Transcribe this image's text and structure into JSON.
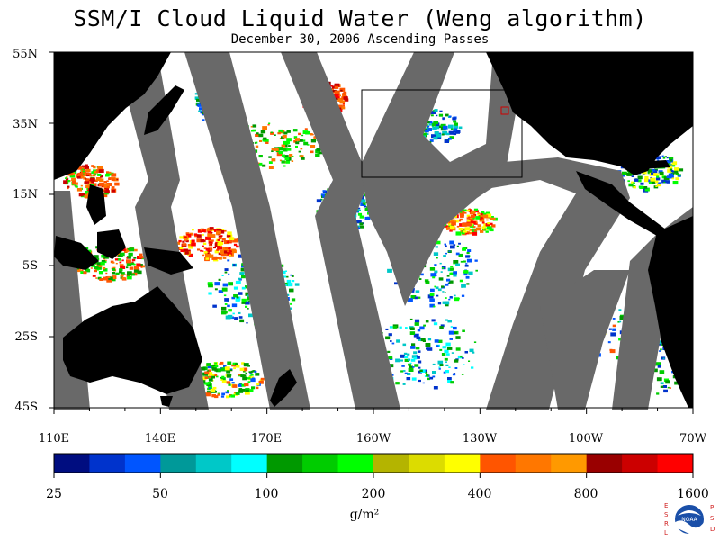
{
  "title": "SSM/I Cloud Liquid Water (Weng algorithm)",
  "subtitle": "December 30, 2006  Ascending Passes",
  "lat_labels": [
    "55N",
    "35N",
    "15N",
    "5S",
    "25S",
    "45S"
  ],
  "lon_labels": [
    "110E",
    "140E",
    "170E",
    "160W",
    "130W",
    "100W",
    "70W"
  ],
  "colorbar": {
    "tick_labels": [
      "25",
      "50",
      "100",
      "200",
      "400",
      "800",
      "1600"
    ],
    "units": "g/m²",
    "colors": [
      "#000d80",
      "#0033cc",
      "#0055ff",
      "#009999",
      "#00c8c8",
      "#00ffff",
      "#009900",
      "#00cc00",
      "#00ff00",
      "#b4b400",
      "#dcdc00",
      "#ffff00",
      "#ff5500",
      "#ff7700",
      "#ff9900",
      "#990000",
      "#cc0000",
      "#ff0000"
    ]
  },
  "map_colors": {
    "ocean": "#ffffff",
    "land": "#000000",
    "no_data": "#696969"
  },
  "logo": {
    "left_letters": "ESRL",
    "right_letters": "PSD",
    "center_text": "NOAA"
  }
}
